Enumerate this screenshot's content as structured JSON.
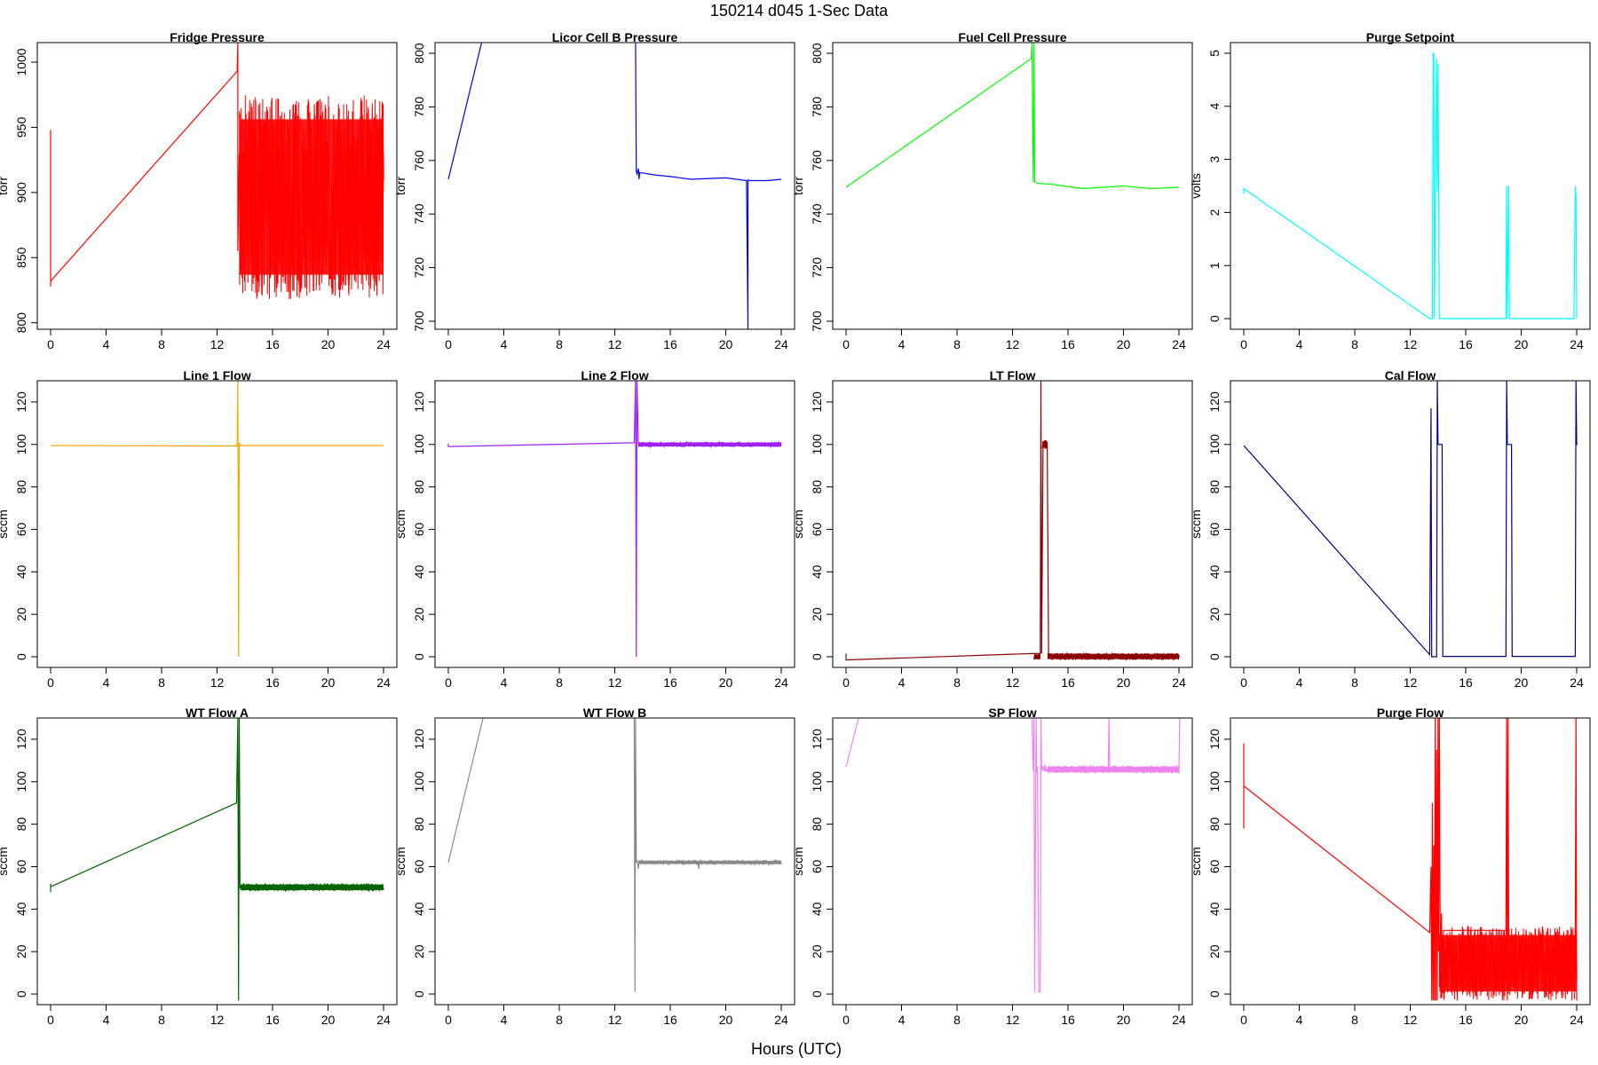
{
  "figure": {
    "title": "150214   d045   1-Sec Data",
    "xlabel": "Hours (UTC)"
  },
  "chart_data": [
    {
      "type": "line",
      "title": "Fridge Pressure",
      "ylabel": "torr",
      "color": "#ff0000",
      "xlim": [
        -0.96,
        24.96
      ],
      "ylim": [
        795,
        1015
      ],
      "xticks": [
        0,
        4,
        8,
        12,
        16,
        20,
        24
      ],
      "yticks": [
        800,
        850,
        900,
        950,
        1000
      ],
      "x": [
        0,
        0,
        0,
        0,
        13.45,
        13.5,
        13.5,
        13.6
      ],
      "y": [
        948,
        830,
        828,
        832,
        993,
        1015,
        855,
        930
      ],
      "noise_bands": [
        {
          "x0": 13.6,
          "x1": 24,
          "low": 818,
          "high": 975
        }
      ]
    },
    {
      "type": "line",
      "title": "Licor Cell B Pressure",
      "ylabel": "torr",
      "color": "#0000ff",
      "xlim": [
        -0.96,
        24.96
      ],
      "ylim": [
        697,
        804
      ],
      "xticks": [
        0,
        4,
        8,
        12,
        16,
        20,
        24
      ],
      "yticks": [
        700,
        720,
        740,
        760,
        780,
        800
      ],
      "x": [
        0,
        2.4,
        null,
        13.5,
        13.55,
        13.6,
        13.7,
        13.75,
        13.8,
        15,
        16,
        17.5,
        19,
        20,
        21.5,
        21.6,
        21.6,
        21.7,
        23,
        24
      ],
      "y": [
        753,
        804,
        null,
        804,
        756,
        755,
        757,
        753,
        755.5,
        754.5,
        754,
        753,
        753.3,
        753.5,
        752.5,
        697,
        752.8,
        752.5,
        752.5,
        753
      ],
      "noise_bands": []
    },
    {
      "type": "line",
      "title": "Fuel Cell Pressure",
      "ylabel": "torr",
      "color": "#00ff00",
      "xlim": [
        -0.96,
        24.96
      ],
      "ylim": [
        697,
        804
      ],
      "xticks": [
        0,
        4,
        8,
        12,
        16,
        20,
        24
      ],
      "yticks": [
        700,
        720,
        740,
        760,
        780,
        800
      ],
      "x": [
        0,
        13.35,
        13.4,
        13.5,
        13.55,
        13.6,
        13.8,
        15,
        17,
        20,
        22,
        24
      ],
      "y": [
        750,
        798,
        804,
        752,
        804,
        752,
        751.5,
        751,
        749.5,
        750.5,
        749.5,
        750
      ],
      "noise_bands": []
    },
    {
      "type": "line",
      "title": "Purge Setpoint",
      "ylabel": "volts",
      "color": "#00ffff",
      "xlim": [
        -0.96,
        24.96
      ],
      "ylim": [
        -0.2,
        5.2
      ],
      "xticks": [
        0,
        4,
        8,
        12,
        16,
        20,
        24
      ],
      "yticks": [
        0,
        1,
        2,
        3,
        4,
        5
      ],
      "x": [
        0,
        0,
        13.4,
        13.6,
        13.65,
        13.7,
        13.75,
        13.9,
        13.95,
        14.0,
        14.05,
        14.1,
        18.9,
        18.95,
        19.0,
        19.1,
        19.15,
        19.2,
        23.8,
        23.9,
        23.95,
        24
      ],
      "y": [
        2.35,
        2.45,
        0,
        0,
        5,
        5,
        0,
        4.9,
        2.4,
        4.8,
        2.3,
        0,
        0,
        2.5,
        0,
        2.5,
        0,
        0,
        0,
        2.5,
        2.3,
        0
      ],
      "noise_bands": []
    },
    {
      "type": "line",
      "title": "Line 1 Flow",
      "ylabel": "sccm",
      "color": "#ffa500",
      "xlim": [
        -0.96,
        24.96
      ],
      "ylim": [
        -5,
        130
      ],
      "xticks": [
        0,
        4,
        8,
        12,
        16,
        20,
        24
      ],
      "yticks": [
        0,
        20,
        40,
        60,
        80,
        100,
        120
      ],
      "x": [
        0,
        13.45,
        13.5,
        13.55,
        13.6,
        13.7,
        24
      ],
      "y": [
        99.5,
        99.3,
        130,
        0,
        100.5,
        99.5,
        99.5
      ],
      "noise_bands": []
    },
    {
      "type": "line",
      "title": "Line 2 Flow",
      "ylabel": "sccm",
      "color": "#a020f0",
      "xlim": [
        -0.96,
        24.96
      ],
      "ylim": [
        -5,
        130
      ],
      "xticks": [
        0,
        4,
        8,
        12,
        16,
        20,
        24
      ],
      "yticks": [
        0,
        20,
        40,
        60,
        80,
        100,
        120
      ],
      "x": [
        0,
        0,
        13.4,
        13.5,
        13.55,
        13.6,
        13.7
      ],
      "y": [
        100.5,
        99,
        100.8,
        130,
        0,
        130,
        100
      ],
      "noise_bands": [
        {
          "x0": 13.7,
          "x1": 24,
          "low": 98.8,
          "high": 101.2
        }
      ]
    },
    {
      "type": "line",
      "title": "LT Flow",
      "ylabel": "sccm",
      "color": "#8b0000",
      "xlim": [
        -0.96,
        24.96
      ],
      "ylim": [
        -5,
        130
      ],
      "xticks": [
        0,
        4,
        8,
        12,
        16,
        20,
        24
      ],
      "yticks": [
        0,
        20,
        40,
        60,
        80,
        100,
        120
      ],
      "x": [
        0,
        0,
        13.4,
        13.5,
        14.0,
        14.05,
        14.1,
        14.2,
        14.5,
        14.6
      ],
      "y": [
        1.5,
        -1.5,
        1.5,
        1.5,
        1.5,
        130,
        1.5,
        101,
        101,
        1
      ],
      "noise_bands": [
        {
          "x0": 13.55,
          "x1": 14.0,
          "low": -1.5,
          "high": 1.5
        },
        {
          "x0": 14.15,
          "x1": 14.5,
          "low": 98,
          "high": 102
        },
        {
          "x0": 14.55,
          "x1": 24,
          "low": -1.5,
          "high": 1.8
        }
      ]
    },
    {
      "type": "line",
      "title": "Cal Flow",
      "ylabel": "sccm",
      "color": "#000080",
      "xlim": [
        -0.96,
        24.96
      ],
      "ylim": [
        -5,
        130
      ],
      "xticks": [
        0,
        4,
        8,
        12,
        16,
        20,
        24
      ],
      "yticks": [
        0,
        20,
        40,
        60,
        80,
        100,
        120
      ],
      "x": [
        0,
        13.4,
        13.5,
        13.55,
        13.6,
        13.9,
        13.95,
        14.0,
        14.05,
        14.3,
        14.35,
        18.9,
        18.95,
        19.0,
        19.3,
        19.35,
        23.9,
        23.95,
        24,
        24.05
      ],
      "y": [
        99.5,
        1,
        117,
        0,
        0,
        0,
        130,
        100,
        100,
        100,
        0.2,
        0.2,
        130,
        100,
        100,
        0.2,
        0.2,
        130,
        100,
        100
      ],
      "noise_bands": []
    },
    {
      "type": "line",
      "title": "WT Flow A",
      "ylabel": "sccm",
      "color": "#006400",
      "xlim": [
        -0.96,
        24.96
      ],
      "ylim": [
        -5,
        130
      ],
      "xticks": [
        0,
        4,
        8,
        12,
        16,
        20,
        24
      ],
      "yticks": [
        0,
        20,
        40,
        60,
        80,
        100,
        120
      ],
      "x": [
        0,
        0,
        0,
        13.4,
        13.5,
        13.55,
        13.6,
        13.65,
        13.7
      ],
      "y": [
        48,
        52,
        50.5,
        90,
        130,
        -3,
        130,
        50,
        50
      ],
      "noise_bands": [
        {
          "x0": 13.7,
          "x1": 24,
          "low": 48.5,
          "high": 52
        }
      ]
    },
    {
      "type": "line",
      "title": "WT Flow B",
      "ylabel": "sccm",
      "color": "#888888",
      "xlim": [
        -0.96,
        24.96
      ],
      "ylim": [
        -5,
        130
      ],
      "xticks": [
        0,
        4,
        8,
        12,
        16,
        20,
        24
      ],
      "yticks": [
        0,
        20,
        40,
        60,
        80,
        100,
        120
      ],
      "x": [
        0,
        2.5,
        null,
        13.4,
        13.45,
        13.5,
        13.55,
        13.6,
        13.7,
        13.75,
        13.8,
        16,
        18,
        18.05,
        18.1,
        20,
        23,
        24
      ],
      "y": [
        62,
        130,
        null,
        130,
        1,
        130,
        62,
        63,
        59,
        63,
        62,
        62,
        62,
        59,
        62,
        62,
        62,
        62
      ],
      "noise_bands": [
        {
          "x0": 13.8,
          "x1": 24,
          "low": 61,
          "high": 63
        }
      ]
    },
    {
      "type": "line",
      "title": "SP Flow",
      "ylabel": "sccm",
      "color": "#ee82ee",
      "xlim": [
        -0.96,
        24.96
      ],
      "ylim": [
        -5,
        130
      ],
      "xticks": [
        0,
        4,
        8,
        12,
        16,
        20,
        24
      ],
      "yticks": [
        0,
        20,
        40,
        60,
        80,
        100,
        120
      ],
      "x": [
        0,
        0.9,
        null,
        13.4,
        13.5,
        13.55,
        13.6,
        13.7,
        13.75,
        13.8,
        13.9,
        14.0,
        14.05,
        14.1,
        14.2,
        14.3,
        14.35,
        14.4,
        14.5,
        16,
        18.9,
        18.95,
        19.0,
        20,
        24,
        24.05
      ],
      "y": [
        107,
        130,
        null,
        130,
        105,
        130,
        1,
        130,
        104,
        107,
        1,
        1,
        130,
        105,
        107,
        105,
        108,
        105,
        106,
        105.5,
        105,
        130,
        105,
        106,
        106,
        130
      ],
      "noise_bands": [
        {
          "x0": 14.5,
          "x1": 24,
          "low": 104,
          "high": 107.5
        }
      ]
    },
    {
      "type": "line",
      "title": "Purge Flow",
      "ylabel": "sccm",
      "color": "#ff0000",
      "xlim": [
        -0.96,
        24.96
      ],
      "ylim": [
        -5,
        130
      ],
      "xticks": [
        0,
        4,
        8,
        12,
        16,
        20,
        24
      ],
      "yticks": [
        0,
        20,
        40,
        60,
        80,
        100,
        120
      ],
      "x": [
        0,
        0,
        0,
        13.4,
        13.5,
        13.55,
        13.6,
        13.65,
        13.7,
        13.75,
        13.8,
        13.85,
        13.9,
        13.95,
        14.0,
        14.05,
        14.1,
        14.15,
        14.2,
        14.25,
        14.3,
        14.4,
        18.9,
        18.95,
        19.0,
        19.05,
        19.1,
        23.9,
        23.95,
        24
      ],
      "y": [
        78,
        118,
        98,
        29,
        60,
        -3,
        90,
        -3,
        70,
        -3,
        130,
        -3,
        115,
        -3,
        130,
        20,
        130,
        40,
        10,
        38,
        15,
        30,
        30,
        130,
        -3,
        130,
        25,
        25,
        130,
        -3
      ],
      "noise_bands": [
        {
          "x0": 14.1,
          "x1": 24,
          "low": -3,
          "high": 32
        }
      ]
    }
  ]
}
